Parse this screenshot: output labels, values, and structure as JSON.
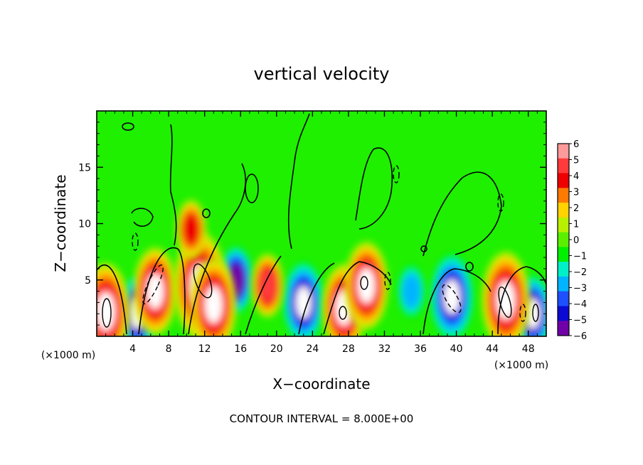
{
  "chart_data": {
    "type": "heatmap",
    "title": "vertical velocity",
    "xlabel": "X−coordinate",
    "ylabel": "Z−coordinate",
    "x_unit_left": "(×1000 m)",
    "x_unit_right": "(×1000 m)",
    "xlim": [
      0,
      50
    ],
    "ylim": [
      0,
      20
    ],
    "x_ticks": [
      4,
      8,
      12,
      16,
      20,
      24,
      28,
      32,
      36,
      40,
      44,
      48
    ],
    "y_ticks": [
      5,
      10,
      15
    ],
    "footer": "CONTOUR INTERVAL = 8.000E+00",
    "colorbar": {
      "levels": [
        6,
        5,
        4,
        3,
        2,
        1,
        0,
        -1,
        -2,
        -3,
        -4,
        -5,
        -6
      ],
      "labels": [
        "6",
        "5",
        "4",
        "3",
        "2",
        "1",
        "0",
        "−1",
        "−2",
        "−3",
        "−4",
        "−5",
        "−6"
      ],
      "colors": [
        "#ff9a9a",
        "#ff3a3a",
        "#ee0000",
        "#ff7a00",
        "#ffd200",
        "#b8f000",
        "#5af000",
        "#00f000",
        "#00f0c8",
        "#00b4ff",
        "#1e50ff",
        "#0a0ad2",
        "#7000a8"
      ]
    },
    "background_color": "#1ef000",
    "updrafts": [
      {
        "x": 1.0,
        "z": 2.2,
        "w": 12
      },
      {
        "x": 6.5,
        "z": 4.0,
        "w": 10
      },
      {
        "x": 11.5,
        "z": 4.5,
        "w": 14
      },
      {
        "x": 13.0,
        "z": 2.8,
        "w": 11
      },
      {
        "x": 19.0,
        "z": 4.5,
        "w": 5
      },
      {
        "x": 27.5,
        "z": 2.5,
        "w": 10
      },
      {
        "x": 30.0,
        "z": 4.5,
        "w": 10
      },
      {
        "x": 45.5,
        "z": 3.2,
        "w": 12
      },
      {
        "x": 10.5,
        "z": 9.5,
        "w": 4
      }
    ],
    "downdrafts": [
      {
        "x": 4.5,
        "z": 2.0,
        "w": -8
      },
      {
        "x": 15.5,
        "z": 5.0,
        "w": -6
      },
      {
        "x": 23.0,
        "z": 3.0,
        "w": -9
      },
      {
        "x": 39.5,
        "z": 3.5,
        "w": -10
      },
      {
        "x": 48.5,
        "z": 2.0,
        "w": -8
      },
      {
        "x": 35.0,
        "z": 4.0,
        "w": -3
      }
    ]
  }
}
